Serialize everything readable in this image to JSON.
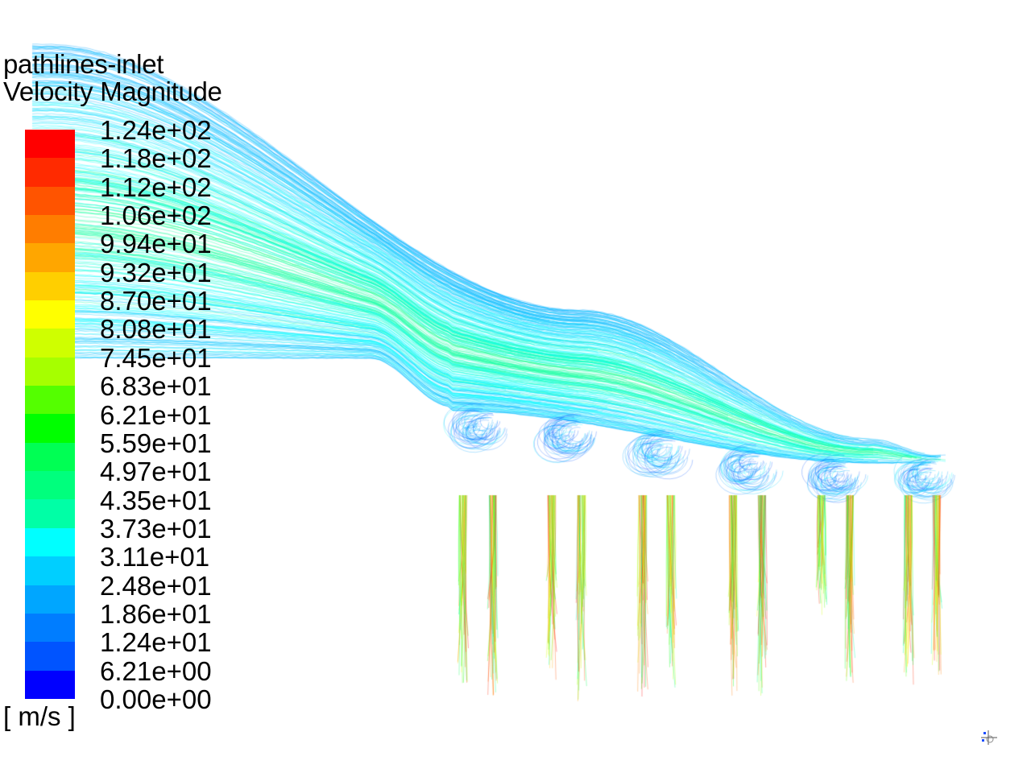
{
  "legend": {
    "title_line1": "pathlines-inlet",
    "title_line2": "Velocity Magnitude",
    "unit": "[ m/s ]",
    "ticks": [
      "1.24e+02",
      "1.18e+02",
      "1.12e+02",
      "1.06e+02",
      "9.94e+01",
      "9.32e+01",
      "8.70e+01",
      "8.08e+01",
      "7.45e+01",
      "6.83e+01",
      "6.21e+01",
      "5.59e+01",
      "4.97e+01",
      "4.35e+01",
      "3.73e+01",
      "3.11e+01",
      "2.48e+01",
      "1.86e+01",
      "1.24e+01",
      "6.21e+00",
      "0.00e+00"
    ],
    "colors_top_to_bottom": [
      "#ff0000",
      "#ff2a00",
      "#ff5400",
      "#ff7d00",
      "#ffa600",
      "#ffcf00",
      "#ffff00",
      "#cfff00",
      "#a6ff00",
      "#54ff00",
      "#00ff00",
      "#00ff54",
      "#00ff7d",
      "#00ffa6",
      "#00ffff",
      "#00cfff",
      "#00a6ff",
      "#007dff",
      "#0054ff",
      "#0000ff"
    ]
  },
  "scene": {
    "description_icon": "axis-triad-icon",
    "outlet_count": 6,
    "jets_per_outlet": 2
  }
}
